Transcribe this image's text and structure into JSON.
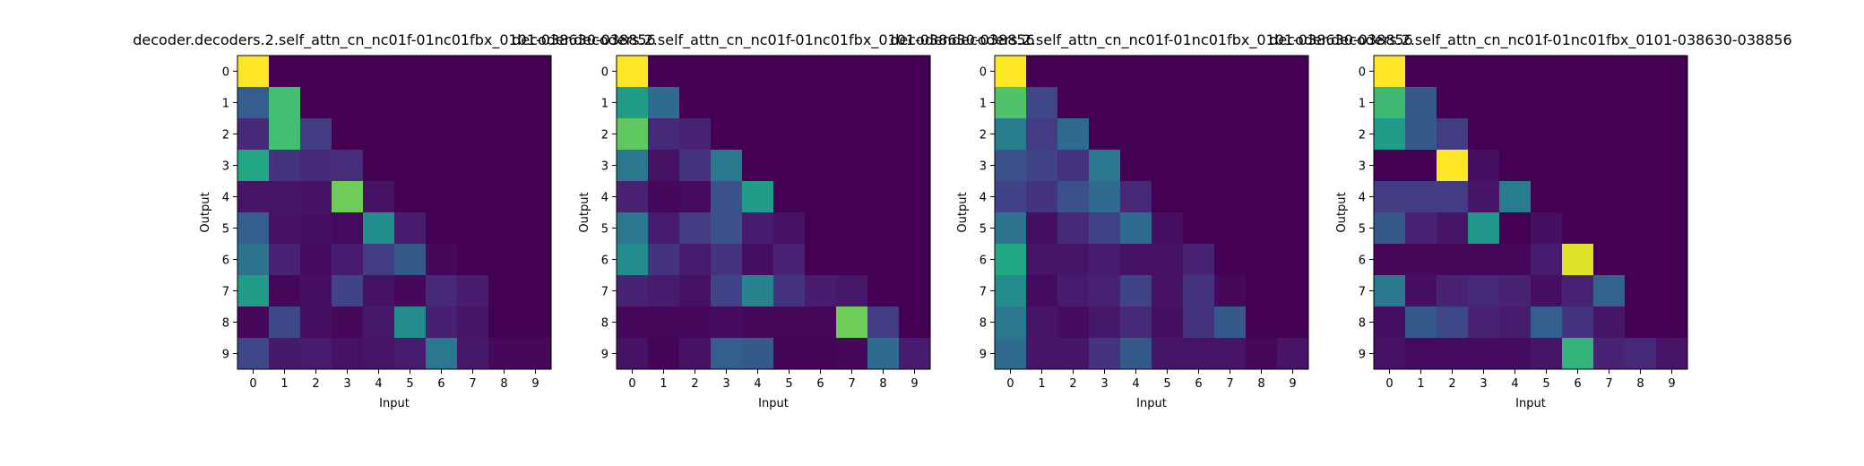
{
  "chart_data": [
    {
      "type": "heatmap",
      "title": "decoder.decoders.2.self_attn_cn_nc01f-01nc01fbx_0101-038630-038856",
      "xlabel": "Input",
      "ylabel": "Output",
      "x_ticks": [
        "0",
        "1",
        "2",
        "3",
        "4",
        "5",
        "6",
        "7",
        "8",
        "9"
      ],
      "y_ticks": [
        "0",
        "1",
        "2",
        "3",
        "4",
        "5",
        "6",
        "7",
        "8",
        "9"
      ],
      "colormap": "viridis",
      "grid": false,
      "values": [
        [
          1.0,
          0,
          0,
          0,
          0,
          0,
          0,
          0,
          0,
          0
        ],
        [
          0.3,
          0.7,
          0,
          0,
          0,
          0,
          0,
          0,
          0,
          0
        ],
        [
          0.12,
          0.7,
          0.18,
          0,
          0,
          0,
          0,
          0,
          0,
          0
        ],
        [
          0.6,
          0.15,
          0.12,
          0.13,
          0,
          0,
          0,
          0,
          0,
          0
        ],
        [
          0.06,
          0.06,
          0.05,
          0.78,
          0.05,
          0,
          0,
          0,
          0,
          0
        ],
        [
          0.3,
          0.05,
          0.04,
          0.03,
          0.5,
          0.08,
          0,
          0,
          0,
          0
        ],
        [
          0.38,
          0.1,
          0.03,
          0.08,
          0.18,
          0.28,
          0.02,
          0,
          0,
          0
        ],
        [
          0.55,
          0.02,
          0.04,
          0.2,
          0.05,
          0.02,
          0.12,
          0.08,
          0,
          0
        ],
        [
          0.02,
          0.22,
          0.04,
          0.02,
          0.07,
          0.48,
          0.09,
          0.06,
          0,
          0
        ],
        [
          0.22,
          0.07,
          0.08,
          0.05,
          0.06,
          0.08,
          0.4,
          0.07,
          0.02,
          0.02
        ]
      ]
    },
    {
      "type": "heatmap",
      "title": "decoder.decoders.2.self_attn_cn_nc01f-01nc01fbx_0101-038630-038856",
      "xlabel": "Input",
      "ylabel": "Output",
      "x_ticks": [
        "0",
        "1",
        "2",
        "3",
        "4",
        "5",
        "6",
        "7",
        "8",
        "9"
      ],
      "y_ticks": [
        "0",
        "1",
        "2",
        "3",
        "4",
        "5",
        "6",
        "7",
        "8",
        "9"
      ],
      "colormap": "viridis",
      "grid": false,
      "values": [
        [
          1.0,
          0,
          0,
          0,
          0,
          0,
          0,
          0,
          0,
          0
        ],
        [
          0.55,
          0.35,
          0,
          0,
          0,
          0,
          0,
          0,
          0,
          0
        ],
        [
          0.75,
          0.12,
          0.1,
          0,
          0,
          0,
          0,
          0,
          0,
          0
        ],
        [
          0.4,
          0.05,
          0.15,
          0.4,
          0,
          0,
          0,
          0,
          0,
          0
        ],
        [
          0.1,
          0.02,
          0.03,
          0.25,
          0.55,
          0,
          0,
          0,
          0,
          0
        ],
        [
          0.4,
          0.08,
          0.18,
          0.25,
          0.08,
          0.05,
          0,
          0,
          0,
          0
        ],
        [
          0.48,
          0.15,
          0.08,
          0.15,
          0.04,
          0.1,
          0,
          0,
          0,
          0
        ],
        [
          0.1,
          0.08,
          0.05,
          0.2,
          0.45,
          0.15,
          0.08,
          0.07,
          0,
          0
        ],
        [
          0.02,
          0.02,
          0.02,
          0.03,
          0.02,
          0.02,
          0.02,
          0.78,
          0.18,
          0
        ],
        [
          0.05,
          0.01,
          0.05,
          0.3,
          0.28,
          0.01,
          0.01,
          0.02,
          0.35,
          0.08
        ]
      ]
    },
    {
      "type": "heatmap",
      "title": "decoder.decoders.2.self_attn_cn_nc01f-01nc01fbx_0101-038630-038856",
      "xlabel": "Input",
      "ylabel": "Output",
      "x_ticks": [
        "0",
        "1",
        "2",
        "3",
        "4",
        "5",
        "6",
        "7",
        "8",
        "9"
      ],
      "y_ticks": [
        "0",
        "1",
        "2",
        "3",
        "4",
        "5",
        "6",
        "7",
        "8",
        "9"
      ],
      "colormap": "viridis",
      "grid": false,
      "values": [
        [
          1.0,
          0,
          0,
          0,
          0,
          0,
          0,
          0,
          0,
          0
        ],
        [
          0.72,
          0.22,
          0,
          0,
          0,
          0,
          0,
          0,
          0,
          0
        ],
        [
          0.42,
          0.18,
          0.35,
          0,
          0,
          0,
          0,
          0,
          0,
          0
        ],
        [
          0.25,
          0.2,
          0.15,
          0.4,
          0,
          0,
          0,
          0,
          0,
          0
        ],
        [
          0.2,
          0.15,
          0.25,
          0.35,
          0.12,
          0,
          0,
          0,
          0,
          0
        ],
        [
          0.38,
          0.04,
          0.12,
          0.2,
          0.35,
          0.04,
          0,
          0,
          0,
          0
        ],
        [
          0.6,
          0.06,
          0.06,
          0.08,
          0.05,
          0.05,
          0.1,
          0,
          0,
          0
        ],
        [
          0.48,
          0.03,
          0.08,
          0.1,
          0.2,
          0.05,
          0.15,
          0.02,
          0,
          0
        ],
        [
          0.4,
          0.06,
          0.03,
          0.07,
          0.12,
          0.04,
          0.15,
          0.28,
          0,
          0
        ],
        [
          0.35,
          0.06,
          0.06,
          0.15,
          0.28,
          0.06,
          0.06,
          0.06,
          0.02,
          0.06
        ]
      ]
    },
    {
      "type": "heatmap",
      "title": "decoder.decoders.2.self_attn_cn_nc01f-01nc01fbx_0101-038630-038856",
      "xlabel": "Input",
      "ylabel": "Output",
      "x_ticks": [
        "0",
        "1",
        "2",
        "3",
        "4",
        "5",
        "6",
        "7",
        "8",
        "9"
      ],
      "y_ticks": [
        "0",
        "1",
        "2",
        "3",
        "4",
        "5",
        "6",
        "7",
        "8",
        "9"
      ],
      "colormap": "viridis",
      "grid": false,
      "values": [
        [
          1.0,
          0,
          0,
          0,
          0,
          0,
          0,
          0,
          0,
          0
        ],
        [
          0.68,
          0.28,
          0,
          0,
          0,
          0,
          0,
          0,
          0,
          0
        ],
        [
          0.55,
          0.28,
          0.18,
          0,
          0,
          0,
          0,
          0,
          0,
          0
        ],
        [
          0,
          0,
          1.0,
          0.04,
          0,
          0,
          0,
          0,
          0,
          0
        ],
        [
          0.18,
          0.18,
          0.18,
          0.06,
          0.42,
          0,
          0,
          0,
          0,
          0
        ],
        [
          0.28,
          0.1,
          0.06,
          0.52,
          0,
          0.04,
          0,
          0,
          0,
          0
        ],
        [
          0.02,
          0.02,
          0.02,
          0.02,
          0.02,
          0.08,
          0.95,
          0,
          0,
          0
        ],
        [
          0.4,
          0.04,
          0.1,
          0.12,
          0.1,
          0.04,
          0.1,
          0.32,
          0,
          0
        ],
        [
          0.04,
          0.28,
          0.22,
          0.1,
          0.08,
          0.3,
          0.15,
          0.06,
          0,
          0
        ],
        [
          0.05,
          0.03,
          0.03,
          0.03,
          0.03,
          0.06,
          0.65,
          0.1,
          0.12,
          0.06
        ]
      ]
    }
  ]
}
